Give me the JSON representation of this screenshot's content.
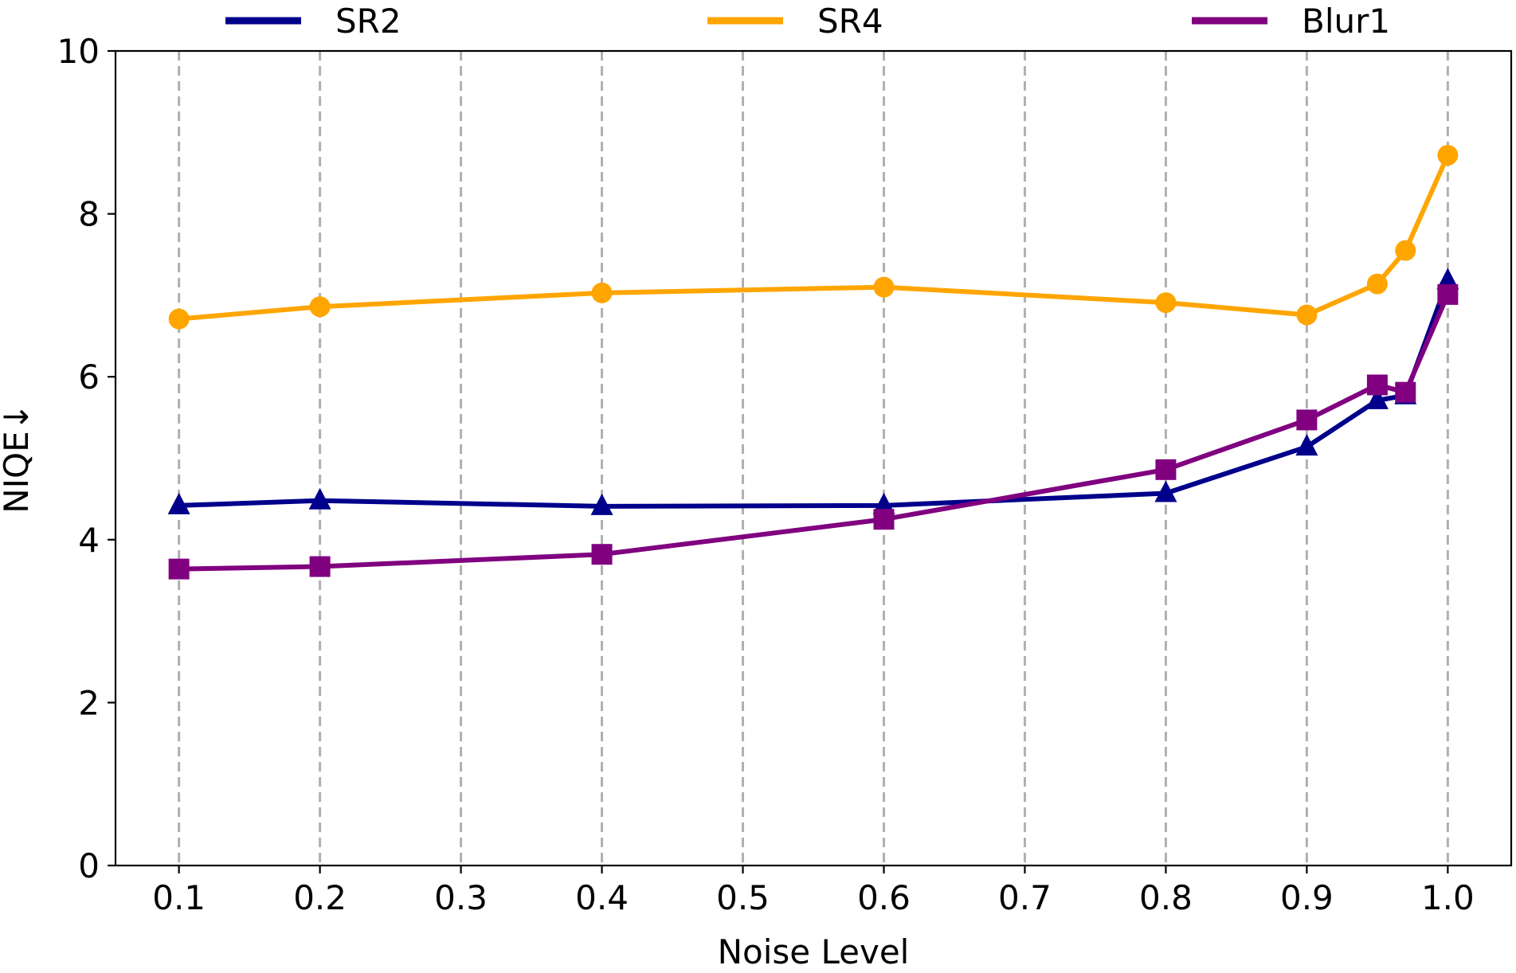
{
  "chart_data": {
    "type": "line",
    "title": "",
    "xlabel": "Noise Level",
    "ylabel": "NIQE↓",
    "xlim": [
      0.055,
      1.045
    ],
    "ylim": [
      0,
      10
    ],
    "xticks": [
      "0.1",
      "0.2",
      "0.3",
      "0.4",
      "0.5",
      "0.6",
      "0.7",
      "0.8",
      "0.9",
      "1.0"
    ],
    "yticks": [
      "0",
      "2",
      "4",
      "6",
      "8",
      "10"
    ],
    "grid": "vertical dashed",
    "legend": "top, above plot",
    "series": [
      {
        "name": "SR2",
        "color": "#00008b",
        "marker": "triangle",
        "x": [
          0.1,
          0.2,
          0.4,
          0.6,
          0.8,
          0.9,
          0.95,
          0.97,
          1.0
        ],
        "y": [
          4.42,
          4.48,
          4.41,
          4.42,
          4.57,
          5.14,
          5.71,
          5.77,
          7.18
        ]
      },
      {
        "name": "SR4",
        "color": "#ffa500",
        "marker": "circle",
        "x": [
          0.1,
          0.2,
          0.4,
          0.6,
          0.8,
          0.9,
          0.95,
          0.97,
          1.0
        ],
        "y": [
          6.71,
          6.86,
          7.03,
          7.1,
          6.91,
          6.76,
          7.14,
          7.55,
          8.72
        ]
      },
      {
        "name": "Blur1",
        "color": "#800080",
        "marker": "square",
        "x": [
          0.1,
          0.2,
          0.4,
          0.6,
          0.8,
          0.9,
          0.95,
          0.97,
          1.0
        ],
        "y": [
          3.64,
          3.67,
          3.82,
          4.25,
          4.86,
          5.47,
          5.9,
          5.81,
          7.01
        ]
      }
    ]
  }
}
